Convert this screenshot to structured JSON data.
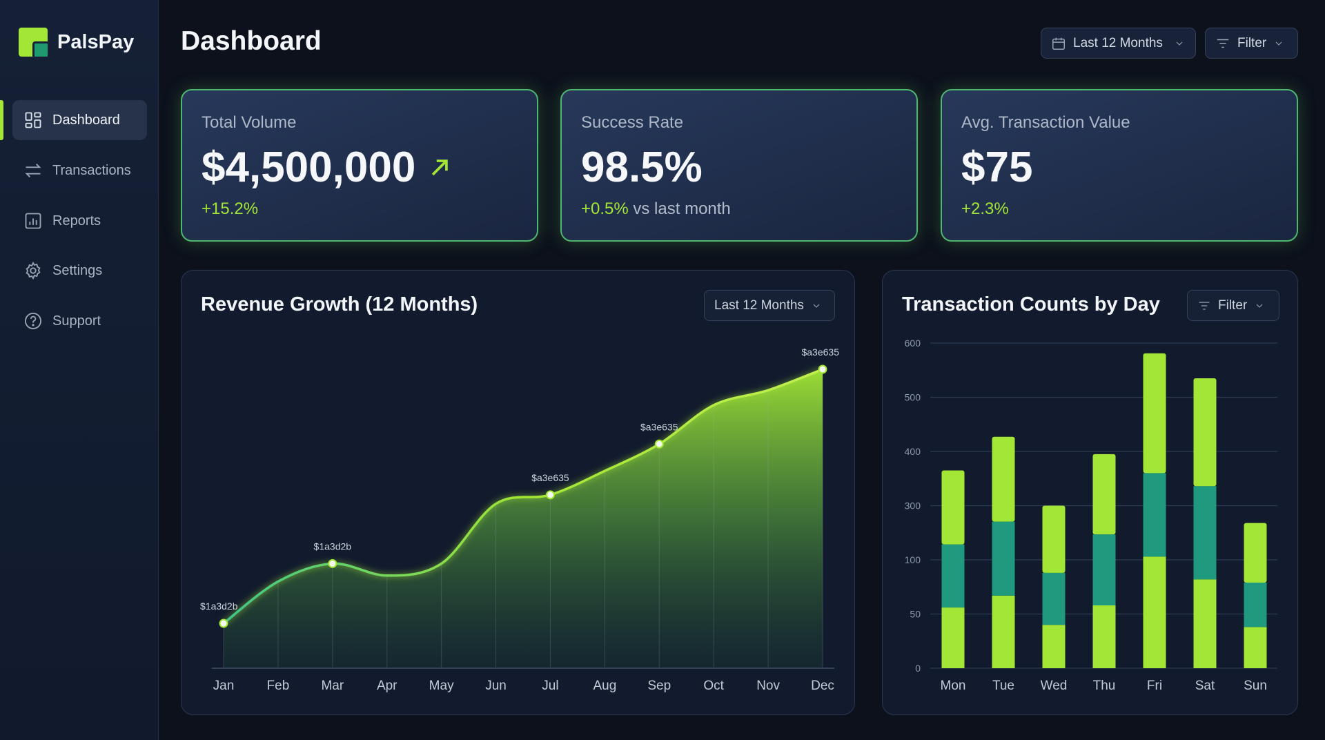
{
  "app": {
    "name": "PalsPay"
  },
  "sidebar": {
    "items": [
      {
        "label": "Dashboard",
        "icon": "grid-icon",
        "active": true
      },
      {
        "label": "Transactions",
        "icon": "arrows-swap-icon"
      },
      {
        "label": "Reports",
        "icon": "bar-chart-icon"
      },
      {
        "label": "Settings",
        "icon": "gear-icon"
      },
      {
        "label": "Support",
        "icon": "help-circle-icon"
      }
    ]
  },
  "header": {
    "title": "Dashboard",
    "date_range": "Last 12 Months",
    "filter": "Filter"
  },
  "cards": [
    {
      "label": "Total Volume",
      "value": "$4,500,000",
      "delta": "+15.2%",
      "delta_suffix": "",
      "trend": "up-right-arrow-icon"
    },
    {
      "label": "Success Rate",
      "value": "98.5%",
      "delta": "+0.5%",
      "delta_suffix": " vs last month"
    },
    {
      "label": "Avg. Transaction Value",
      "value": "$75",
      "delta": "+2.3%",
      "delta_suffix": ""
    }
  ],
  "colors": {
    "accent": "#a3e635",
    "teal": "#1f9a7e",
    "background": "#0c111c",
    "card_border": "#4fb870"
  },
  "chart_data": [
    {
      "type": "area",
      "title": "Revenue Growth (12 Months)",
      "control": "Last 12 Months",
      "categories": [
        "Jan",
        "Feb",
        "Mar",
        "Apr",
        "May",
        "Jun",
        "Jul",
        "Aug",
        "Sep",
        "Oct",
        "Nov",
        "Dec"
      ],
      "values": [
        15,
        29,
        35,
        31,
        35,
        55,
        58,
        66,
        75,
        88,
        93,
        100
      ],
      "ylim": [
        0,
        100
      ],
      "point_labels": [
        {
          "index": 0,
          "text": "$1a3d2b"
        },
        {
          "index": 2,
          "text": "$1a3d2b"
        },
        {
          "index": 6,
          "text": "$a3e635"
        },
        {
          "index": 8,
          "text": "$a3e635"
        },
        {
          "index": 11,
          "text": "$a3e635"
        }
      ],
      "grid": "vertical"
    },
    {
      "type": "bar",
      "stacked": true,
      "title": "Transaction Counts by Day",
      "control": "Filter",
      "categories": [
        "Mon",
        "Tue",
        "Wed",
        "Thu",
        "Fri",
        "Sat",
        "Sun"
      ],
      "yticks": [
        0,
        50,
        100,
        300,
        400,
        500,
        600
      ],
      "series": [
        {
          "color": "#a3e635",
          "values": [
            56,
            67,
            40,
            58,
            112,
            82,
            38
          ]
        },
        {
          "color": "#1f9a7e",
          "values": [
            101,
            174,
            48,
            136,
            248,
            254,
            41
          ]
        },
        {
          "color": "#a3e635",
          "values": [
            208,
            186,
            212,
            201,
            221,
            199,
            157
          ]
        }
      ],
      "grid": "horizontal"
    }
  ]
}
